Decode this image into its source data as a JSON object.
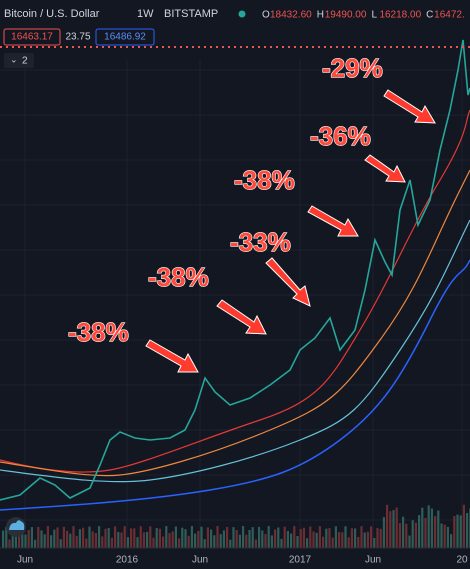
{
  "header": {
    "title": "Bitcoin / U.S. Dollar",
    "interval": "1W",
    "exchange": "BITSTAMP",
    "ohlc": [
      {
        "label": "O",
        "value": "18432.60"
      },
      {
        "label": "H",
        "value": "19490.00"
      },
      {
        "label": "L",
        "value": "16218.00"
      },
      {
        "label": "C",
        "value": "16472."
      }
    ]
  },
  "price_boxes": {
    "bid": "16463.17",
    "spread": "23.75",
    "ask": "16486.92"
  },
  "indicator_toggle": "2",
  "annotations": [
    "-38%",
    "-38%",
    "-33%",
    "-38%",
    "-36%",
    "-29%"
  ],
  "x_axis_labels": [
    "Jun",
    "2016",
    "Jun",
    "2017",
    "Jun",
    "20"
  ]
}
